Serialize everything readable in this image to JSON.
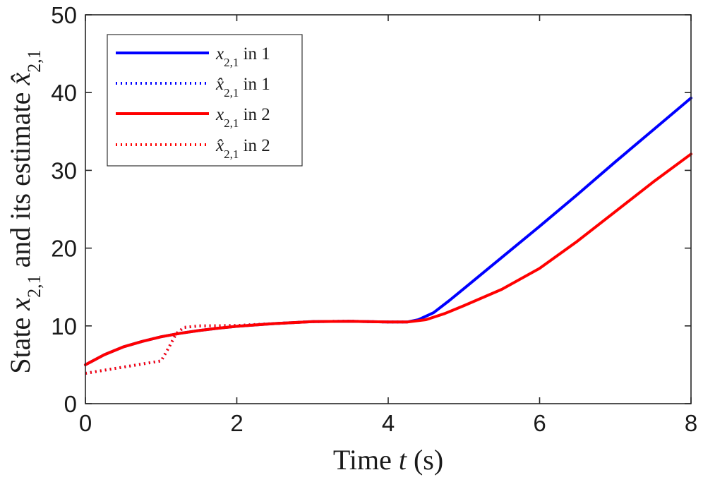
{
  "chart_data": {
    "type": "line",
    "xlabel": {
      "prefix": "Time ",
      "var": "t",
      "suffix": " (s)"
    },
    "ylabel": {
      "prefix": "State ",
      "var": "x",
      "sub": "2,1",
      "middle": " and its estimate ",
      "var_hat": "x̂",
      "sub2": "2,1"
    },
    "xlim": [
      0,
      8
    ],
    "ylim": [
      0,
      50
    ],
    "xticks": [
      0,
      2,
      4,
      6,
      8
    ],
    "yticks": [
      0,
      10,
      20,
      30,
      40,
      50
    ],
    "grid": false,
    "legend_position": "top-left",
    "series": [
      {
        "name": "x_{2,1} in 1",
        "legend": {
          "sym": "x",
          "sub": "2,1",
          "text": " in 1"
        },
        "color": "#0000ff",
        "style": "solid",
        "x": [
          0,
          0.25,
          0.5,
          0.75,
          1.0,
          1.25,
          1.5,
          1.75,
          2.0,
          2.5,
          3.0,
          3.5,
          4.0,
          4.25,
          4.4,
          4.6,
          4.8,
          5.0,
          5.5,
          6.0,
          6.5,
          7.0,
          7.5,
          8.0
        ],
        "y": [
          5.0,
          6.3,
          7.3,
          8.0,
          8.6,
          9.05,
          9.4,
          9.7,
          9.95,
          10.3,
          10.55,
          10.6,
          10.5,
          10.5,
          10.8,
          11.7,
          13.2,
          14.8,
          18.8,
          22.8,
          26.9,
          31.1,
          35.2,
          39.3
        ]
      },
      {
        "name": "x̂_{2,1} in 1",
        "legend": {
          "sym": "x̂",
          "sub": "2,1",
          "text": " in 1"
        },
        "color": "#0000ff",
        "style": "dotted",
        "x": [
          0,
          0.5,
          1.0,
          1.1,
          1.2,
          1.3,
          1.5,
          2.0,
          2.5,
          3.0,
          3.5,
          4.0,
          4.25
        ],
        "y": [
          3.9,
          4.7,
          5.5,
          7.2,
          9.0,
          9.8,
          10.0,
          10.05,
          10.3,
          10.55,
          10.6,
          10.5,
          10.5
        ]
      },
      {
        "name": "x_{2,1} in 2",
        "legend": {
          "sym": "x",
          "sub": "2,1",
          "text": " in 2"
        },
        "color": "#ff0000",
        "style": "solid",
        "x": [
          0,
          0.25,
          0.5,
          0.75,
          1.0,
          1.25,
          1.5,
          1.75,
          2.0,
          2.5,
          3.0,
          3.5,
          4.0,
          4.25,
          4.5,
          4.75,
          5.0,
          5.5,
          6.0,
          6.5,
          7.0,
          7.5,
          8.0
        ],
        "y": [
          5.0,
          6.3,
          7.3,
          8.0,
          8.6,
          9.05,
          9.4,
          9.7,
          9.95,
          10.3,
          10.55,
          10.6,
          10.5,
          10.5,
          10.8,
          11.6,
          12.6,
          14.7,
          17.4,
          20.9,
          24.7,
          28.5,
          32.1
        ]
      },
      {
        "name": "x̂_{2,1} in 2",
        "legend": {
          "sym": "x̂",
          "sub": "2,1",
          "text": " in 2"
        },
        "color": "#ff0000",
        "style": "dotted",
        "x": [
          0,
          0.5,
          1.0,
          1.1,
          1.2,
          1.3,
          1.5,
          2.0,
          2.5,
          3.0,
          3.5,
          4.0,
          4.25
        ],
        "y": [
          3.9,
          4.7,
          5.5,
          7.2,
          9.0,
          9.8,
          10.0,
          10.05,
          10.3,
          10.55,
          10.6,
          10.5,
          10.5
        ]
      }
    ]
  }
}
